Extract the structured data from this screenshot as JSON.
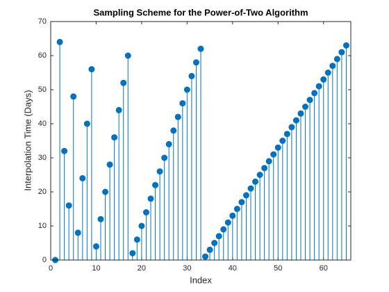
{
  "chart_data": {
    "type": "stem",
    "title": "Sampling Scheme for the Power-of-Two Algorithm",
    "xlabel": "Index",
    "ylabel": "Interpolation Time (Days)",
    "color": "#0072bd",
    "x": [
      1,
      2,
      3,
      4,
      5,
      6,
      7,
      8,
      9,
      10,
      11,
      12,
      13,
      14,
      15,
      16,
      17,
      18,
      19,
      20,
      21,
      22,
      23,
      24,
      25,
      26,
      27,
      28,
      29,
      30,
      31,
      32,
      33,
      34,
      35,
      36,
      37,
      38,
      39,
      40,
      41,
      42,
      43,
      44,
      45,
      46,
      47,
      48,
      49,
      50,
      51,
      52,
      53,
      54,
      55,
      56,
      57,
      58,
      59,
      60,
      61,
      62,
      63,
      64,
      65
    ],
    "values": [
      0,
      64,
      32,
      16,
      48,
      8,
      24,
      40,
      56,
      4,
      12,
      20,
      28,
      36,
      44,
      52,
      60,
      2,
      6,
      10,
      14,
      18,
      22,
      26,
      30,
      34,
      38,
      42,
      46,
      50,
      54,
      58,
      62,
      1,
      3,
      5,
      7,
      9,
      11,
      13,
      15,
      17,
      19,
      21,
      23,
      25,
      27,
      29,
      31,
      33,
      35,
      37,
      39,
      41,
      43,
      45,
      47,
      49,
      51,
      53,
      55,
      57,
      59,
      61,
      63
    ],
    "xlim": [
      0,
      66
    ],
    "xticks": [
      0,
      10,
      20,
      30,
      40,
      50,
      60
    ],
    "ylim": [
      0,
      70
    ],
    "yticks": [
      0,
      10,
      20,
      30,
      40,
      50,
      60,
      70
    ]
  }
}
